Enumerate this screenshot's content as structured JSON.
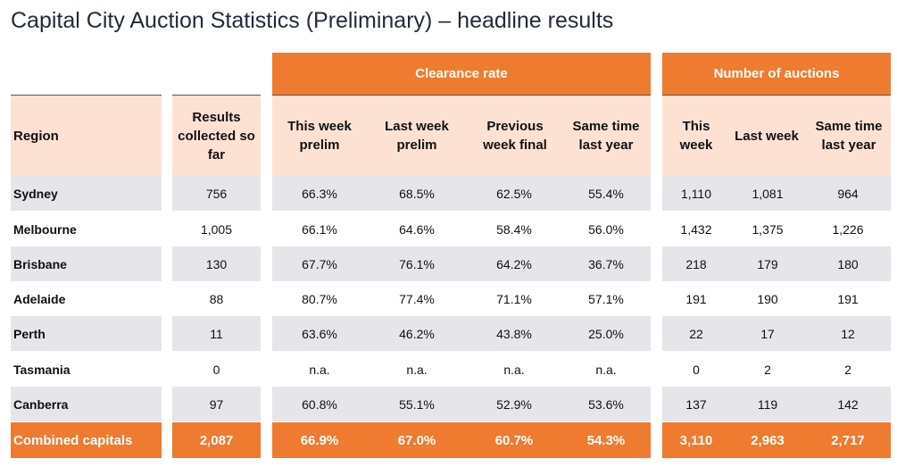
{
  "title": "Capital City Auction Statistics (Preliminary) – headline results",
  "groups": {
    "clearance": "Clearance rate",
    "auctions": "Number of auctions"
  },
  "headers": {
    "region": "Region",
    "results": "Results collected so far",
    "this_week_prelim": "This week prelim",
    "last_week_prelim": "Last week prelim",
    "prev_week_final": "Previous week final",
    "same_time_ly": "Same time last year",
    "this_week": "This week",
    "last_week": "Last week",
    "same_time_ly_auctions": "Same time last year"
  },
  "rows": [
    {
      "region": "Sydney",
      "results": "756",
      "cr_this": "66.3%",
      "cr_last": "68.5%",
      "cr_prev": "62.5%",
      "cr_ly": "55.4%",
      "na_this": "1,110",
      "na_last": "1,081",
      "na_ly": "964"
    },
    {
      "region": "Melbourne",
      "results": "1,005",
      "cr_this": "66.1%",
      "cr_last": "64.6%",
      "cr_prev": "58.4%",
      "cr_ly": "56.0%",
      "na_this": "1,432",
      "na_last": "1,375",
      "na_ly": "1,226"
    },
    {
      "region": "Brisbane",
      "results": "130",
      "cr_this": "67.7%",
      "cr_last": "76.1%",
      "cr_prev": "64.2%",
      "cr_ly": "36.7%",
      "na_this": "218",
      "na_last": "179",
      "na_ly": "180"
    },
    {
      "region": "Adelaide",
      "results": "88",
      "cr_this": "80.7%",
      "cr_last": "77.4%",
      "cr_prev": "71.1%",
      "cr_ly": "57.1%",
      "na_this": "191",
      "na_last": "190",
      "na_ly": "191"
    },
    {
      "region": "Perth",
      "results": "11",
      "cr_this": "63.6%",
      "cr_last": "46.2%",
      "cr_prev": "43.8%",
      "cr_ly": "25.0%",
      "na_this": "22",
      "na_last": "17",
      "na_ly": "12"
    },
    {
      "region": "Tasmania",
      "results": "0",
      "cr_this": "n.a.",
      "cr_last": "n.a.",
      "cr_prev": "n.a.",
      "cr_ly": "n.a.",
      "na_this": "0",
      "na_last": "2",
      "na_ly": "2"
    },
    {
      "region": "Canberra",
      "results": "97",
      "cr_this": "60.8%",
      "cr_last": "55.1%",
      "cr_prev": "52.9%",
      "cr_ly": "53.6%",
      "na_this": "137",
      "na_last": "119",
      "na_ly": "142"
    }
  ],
  "total": {
    "region": "Combined capitals",
    "results": "2,087",
    "cr_this": "66.9%",
    "cr_last": "67.0%",
    "cr_prev": "60.7%",
    "cr_ly": "54.3%",
    "na_this": "3,110",
    "na_last": "2,963",
    "na_ly": "2,717"
  },
  "colors": {
    "accent": "#ee7b30",
    "header_bg": "#fde2d4",
    "stripe": "#e6e6ea"
  }
}
